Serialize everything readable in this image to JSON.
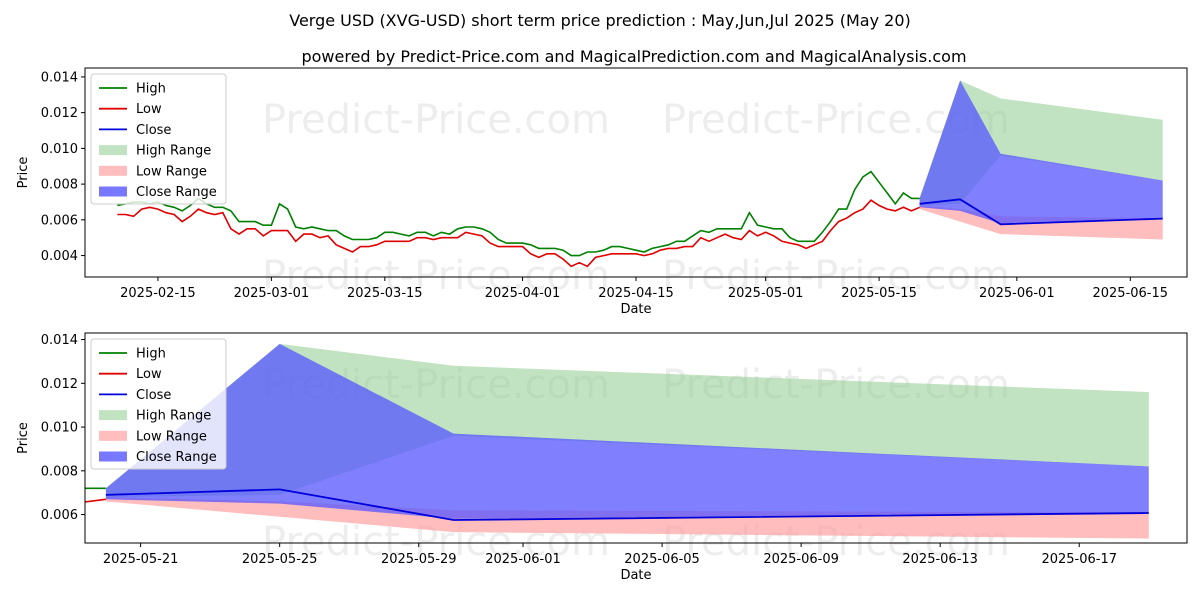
{
  "title": "Verge USD (XVG-USD) short term price prediction : May,Jun,Jul 2025 (May 20)",
  "subtitle": "powered by Predict-Price.com and MagicalPrediction.com and MagicalAnalysis.com",
  "watermark": "Predict-Price.com",
  "colors": {
    "high": "#008000",
    "low": "#e00000",
    "close": "#0000dd",
    "high_range": "#8fcc8f",
    "low_range": "#ff9a9a",
    "close_range": "#5555ff"
  },
  "chart_data": [
    {
      "type": "line",
      "xlabel": "Date",
      "ylabel": "Price",
      "xlim": [
        "2025-02-06",
        "2025-06-22"
      ],
      "ylim": [
        0.0028,
        0.0145
      ],
      "yticks": [
        0.004,
        0.006,
        0.008,
        0.01,
        0.012,
        0.014
      ],
      "ytick_labels": [
        "0.004",
        "0.006",
        "0.008",
        "0.010",
        "0.012",
        "0.014"
      ],
      "xticks": [
        "2025-02-15",
        "2025-03-01",
        "2025-03-15",
        "2025-04-01",
        "2025-04-15",
        "2025-05-01",
        "2025-05-15",
        "2025-06-01",
        "2025-06-15"
      ],
      "legend": [
        "High",
        "Low",
        "Close",
        "High Range",
        "Low Range",
        "Close Range"
      ],
      "legend_position": "upper-left",
      "history": {
        "start_date": "2025-02-10",
        "high": [
          0.0068,
          0.0069,
          0.007,
          0.007,
          0.0069,
          0.007,
          0.0068,
          0.0067,
          0.0065,
          0.0068,
          0.0072,
          0.0069,
          0.0067,
          0.0067,
          0.0065,
          0.0059,
          0.0059,
          0.0059,
          0.0057,
          0.0057,
          0.0069,
          0.0066,
          0.0056,
          0.0055,
          0.0056,
          0.0055,
          0.0054,
          0.0054,
          0.0051,
          0.0049,
          0.0049,
          0.0049,
          0.005,
          0.0053,
          0.0053,
          0.0052,
          0.0051,
          0.0053,
          0.0053,
          0.0051,
          0.0053,
          0.0052,
          0.0055,
          0.0056,
          0.0056,
          0.0055,
          0.0053,
          0.0049,
          0.0047,
          0.0047,
          0.0047,
          0.0046,
          0.0044,
          0.0044,
          0.0044,
          0.0043,
          0.004,
          0.004,
          0.0042,
          0.0042,
          0.0043,
          0.0045,
          0.0045,
          0.0044,
          0.0043,
          0.0042,
          0.0044,
          0.0045,
          0.0046,
          0.0048,
          0.0048,
          0.0051,
          0.0054,
          0.0053,
          0.0055,
          0.0055,
          0.0055,
          0.0055,
          0.0064,
          0.0057,
          0.0056,
          0.0055,
          0.0055,
          0.005,
          0.0048,
          0.0048,
          0.0048,
          0.0053,
          0.0059,
          0.0066,
          0.0066,
          0.0077,
          0.0084,
          0.0087,
          0.0081,
          0.0075,
          0.0069,
          0.0075,
          0.0072,
          0.0072
        ],
        "low": [
          0.0063,
          0.0063,
          0.0062,
          0.0066,
          0.0067,
          0.0066,
          0.0064,
          0.0063,
          0.0059,
          0.0062,
          0.0066,
          0.0064,
          0.0063,
          0.0064,
          0.0055,
          0.0052,
          0.0055,
          0.0055,
          0.0051,
          0.0054,
          0.0054,
          0.0054,
          0.0048,
          0.0052,
          0.0052,
          0.005,
          0.0051,
          0.0046,
          0.0044,
          0.0042,
          0.0045,
          0.0045,
          0.0046,
          0.0048,
          0.0048,
          0.0048,
          0.0048,
          0.005,
          0.005,
          0.0049,
          0.005,
          0.005,
          0.005,
          0.0053,
          0.0052,
          0.0051,
          0.0047,
          0.0045,
          0.0045,
          0.0045,
          0.0045,
          0.0041,
          0.0039,
          0.0041,
          0.0041,
          0.0038,
          0.0034,
          0.0036,
          0.0034,
          0.0039,
          0.004,
          0.0041,
          0.0041,
          0.0041,
          0.0041,
          0.004,
          0.0041,
          0.0043,
          0.0044,
          0.0044,
          0.0045,
          0.0045,
          0.005,
          0.0048,
          0.005,
          0.0052,
          0.005,
          0.0049,
          0.0054,
          0.0051,
          0.0053,
          0.0051,
          0.0048,
          0.0047,
          0.0046,
          0.0044,
          0.0046,
          0.0048,
          0.0054,
          0.0059,
          0.0061,
          0.0064,
          0.0066,
          0.0071,
          0.0068,
          0.0066,
          0.0065,
          0.0067,
          0.0065,
          0.0067
        ]
      },
      "forecast": {
        "dates": [
          "2025-05-20",
          "2025-05-25",
          "2025-05-30",
          "2025-06-19"
        ],
        "close": [
          0.0069,
          0.00715,
          0.00575,
          0.00607
        ],
        "high_range_upper": [
          0.0072,
          0.0138,
          0.0128,
          0.0116
        ],
        "high_range_lower": [
          0.0068,
          0.0069,
          0.0096,
          0.0082
        ],
        "low_range_upper": [
          0.0068,
          0.0066,
          0.0062,
          0.0061
        ],
        "low_range_lower": [
          0.0066,
          0.0059,
          0.0052,
          0.0049
        ],
        "close_range_upper": [
          0.0072,
          0.0138,
          0.0097,
          0.0082
        ],
        "close_range_lower": [
          0.0067,
          0.0065,
          0.0058,
          0.0061
        ]
      }
    },
    {
      "type": "area",
      "xlabel": "Date",
      "ylabel": "Price",
      "xlim": [
        "2025-05-19.4",
        "2025-06-20.1"
      ],
      "ylim": [
        0.0047,
        0.0143
      ],
      "yticks": [
        0.006,
        0.008,
        0.01,
        0.012,
        0.014
      ],
      "ytick_labels": [
        "0.006",
        "0.008",
        "0.010",
        "0.012",
        "0.014"
      ],
      "xticks": [
        "2025-05-21",
        "2025-05-25",
        "2025-05-29",
        "2025-06-01",
        "2025-06-05",
        "2025-06-09",
        "2025-06-13",
        "2025-06-17"
      ],
      "legend": [
        "High",
        "Low",
        "Close",
        "High Range",
        "Low Range",
        "Close Range"
      ],
      "legend_position": "upper-left"
    }
  ]
}
